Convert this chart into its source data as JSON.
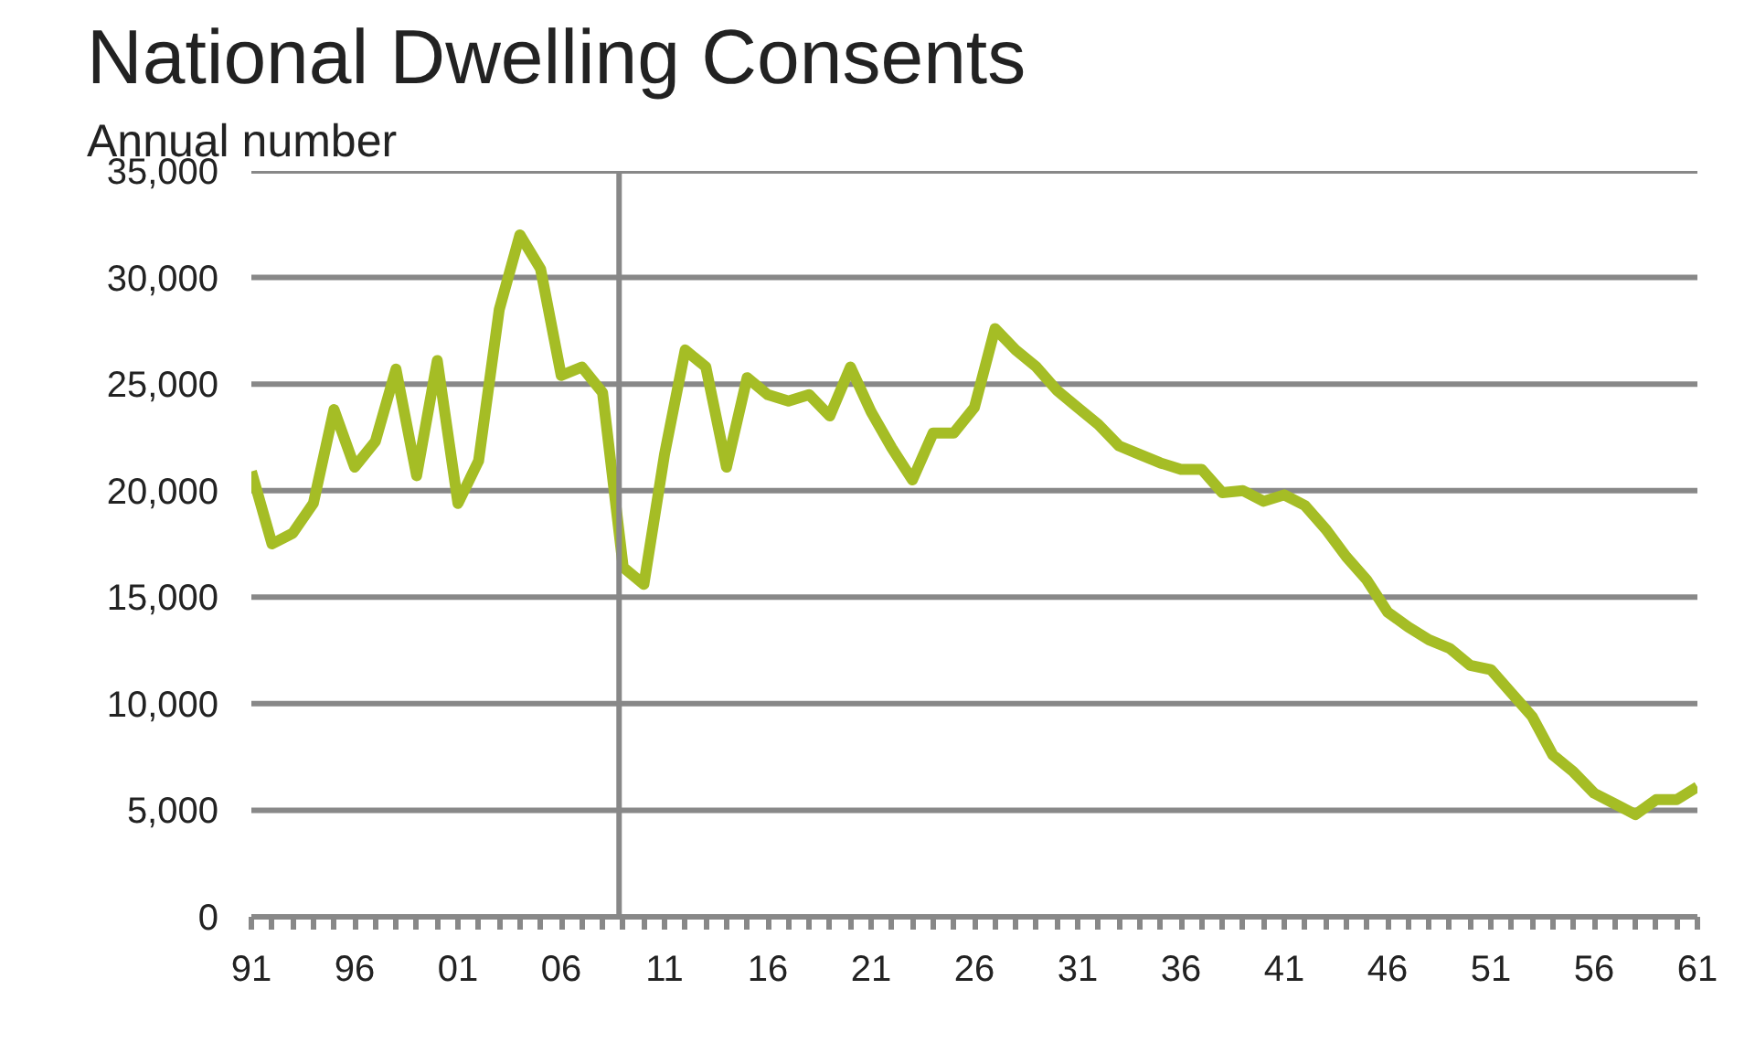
{
  "chart_data": {
    "type": "line",
    "title": "National Dwelling Consents",
    "subtitle": "Annual number",
    "x": [
      1991,
      1992,
      1993,
      1994,
      1995,
      1996,
      1997,
      1998,
      1999,
      2000,
      2001,
      2002,
      2003,
      2004,
      2005,
      2006,
      2007,
      2008,
      2009,
      2010,
      2011,
      2012,
      2013,
      2014,
      2015,
      2016,
      2017,
      2018,
      2019,
      2020,
      2021,
      2022,
      2023,
      2024,
      2025,
      2026,
      2027,
      2028,
      2029,
      2030,
      2031,
      2032,
      2033,
      2034,
      2035,
      2036,
      2037,
      2038,
      2039,
      2040,
      2041,
      2042,
      2043,
      2044,
      2045,
      2046,
      2047,
      2048,
      2049,
      2050,
      2051,
      2052,
      2053,
      2054,
      2055,
      2056,
      2057,
      2058,
      2059,
      2060,
      2061
    ],
    "series": [
      {
        "color": "#a5bd25",
        "values": [
          20900,
          17500,
          18000,
          19400,
          23800,
          21100,
          22300,
          25700,
          20700,
          26100,
          19400,
          21400,
          28500,
          32000,
          30400,
          25400,
          25800,
          24600,
          16400,
          15600,
          21700,
          26600,
          25800,
          21100,
          25300,
          24500,
          24200,
          24500,
          23500,
          25800,
          23700,
          22000,
          20500,
          22700,
          22700,
          23900,
          27600,
          26600,
          25800,
          24700,
          23900,
          23100,
          22100,
          21700,
          21300,
          21000,
          21000,
          19900,
          20000,
          19500,
          19800,
          19300,
          18200,
          16900,
          15800,
          14300,
          13600,
          13000,
          12600,
          11800,
          11600,
          10500,
          9400,
          7600,
          6800,
          5800,
          5300,
          4800,
          5500,
          5500,
          6100
        ]
      }
    ],
    "xlim": [
      1991,
      2061
    ],
    "xticks": [
      {
        "value": 1991,
        "label": "91"
      },
      {
        "value": 1996,
        "label": "96"
      },
      {
        "value": 2001,
        "label": "01"
      },
      {
        "value": 2006,
        "label": "06"
      },
      {
        "value": 2011,
        "label": "11"
      },
      {
        "value": 2016,
        "label": "16"
      },
      {
        "value": 2021,
        "label": "21"
      },
      {
        "value": 2026,
        "label": "26"
      },
      {
        "value": 2031,
        "label": "31"
      },
      {
        "value": 2036,
        "label": "36"
      },
      {
        "value": 2041,
        "label": "41"
      },
      {
        "value": 2046,
        "label": "46"
      },
      {
        "value": 2051,
        "label": "51"
      },
      {
        "value": 2056,
        "label": "56"
      },
      {
        "value": 2061,
        "label": "61"
      }
    ],
    "ylim": [
      0,
      35000
    ],
    "yticks": [
      0,
      {
        "value": 5000,
        "label": "5,000"
      },
      {
        "value": 10000,
        "label": "10,000"
      },
      {
        "value": 15000,
        "label": "15,000"
      },
      {
        "value": 20000,
        "label": "20,000"
      },
      {
        "value": 25000,
        "label": "25,000"
      },
      {
        "value": 30000,
        "label": "30,000"
      },
      {
        "value": 35000,
        "label": "35,000"
      }
    ],
    "grid": "y",
    "ref_lines": [
      {
        "axis": "x",
        "value": 2008.8,
        "label": null,
        "color": "#888888"
      }
    ],
    "line_style": "solid",
    "marker": "none"
  }
}
